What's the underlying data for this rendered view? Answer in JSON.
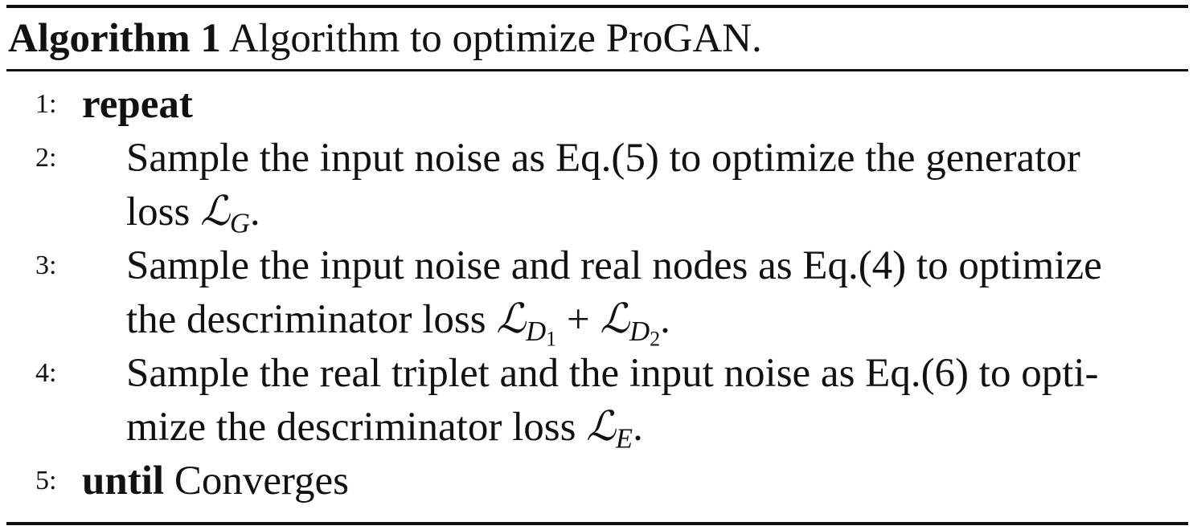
{
  "caption": {
    "label": "Algorithm 1",
    "text": "Algorithm to optimize ProGAN."
  },
  "steps": [
    {
      "number": "1:",
      "keyword": "repeat"
    },
    {
      "number": "2:",
      "line1": "Sample the input noise as Eq.(5) to optimize the generator",
      "line2_text": "loss ",
      "loss_symbol": "ℒ",
      "loss_sub": "G",
      "end": "."
    },
    {
      "number": "3:",
      "line1": "Sample the input noise and real nodes as Eq.(4) to optimize",
      "line2_text": "the descriminator loss ",
      "loss1_symbol": "ℒ",
      "loss1_sub": "D",
      "loss1_subsub": "1",
      "plus": " + ",
      "loss2_symbol": "ℒ",
      "loss2_sub": "D",
      "loss2_subsub": "2",
      "end": "."
    },
    {
      "number": "4:",
      "line1": "Sample the real triplet and the input noise as Eq.(6) to opti-",
      "line2_text": "mize the descriminator loss ",
      "loss_symbol": "ℒ",
      "loss_sub": "E",
      "end": "."
    },
    {
      "number": "5:",
      "keyword": "until",
      "text": " Converges"
    }
  ]
}
